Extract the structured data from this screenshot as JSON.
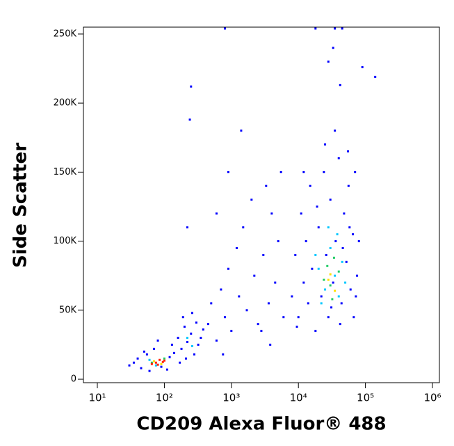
{
  "chart_data": {
    "type": "scatter",
    "x_label": "CD209 Alexa Fluor® 488",
    "y_label": "Side Scatter",
    "xscale": "log",
    "xlim": [
      6.2,
      1270000
    ],
    "xticks": [
      {
        "value": 10,
        "label": "10¹"
      },
      {
        "value": 100,
        "label": "10²"
      },
      {
        "value": 1000,
        "label": "10³"
      },
      {
        "value": 10000,
        "label": "10⁴"
      },
      {
        "value": 100000,
        "label": "10⁵"
      },
      {
        "value": 1000000,
        "label": "10⁶"
      }
    ],
    "ylim": [
      -2500,
      255000
    ],
    "yticks": [
      0,
      {
        "value": 50000,
        "label": "50K"
      },
      {
        "value": 100000,
        "label": "100K"
      },
      {
        "value": 150000,
        "label": "150K"
      },
      {
        "value": 200000,
        "label": "200K"
      },
      {
        "value": 250000,
        "label": "250K"
      }
    ],
    "grid": false,
    "series": [
      {
        "color": "#0000ff",
        "x": [
          35,
          45,
          55,
          60,
          70,
          40,
          90,
          120,
          130,
          50,
          30,
          110,
          140,
          80,
          160,
          180,
          200,
          220,
          250,
          280,
          300,
          320,
          350,
          190,
          210,
          260,
          380,
          170,
          450,
          500,
          600,
          700,
          800,
          900,
          1000,
          1200,
          1300,
          1500,
          1700,
          2000,
          2200,
          2500,
          3000,
          3300,
          3600,
          4000,
          4500,
          5000,
          5500,
          6000,
          600,
          900,
          1400,
          2800,
          3800,
          750,
          8000,
          9000,
          10000,
          11000,
          12000,
          13000,
          14000,
          15000,
          16000,
          18000,
          20000,
          22000,
          24000,
          26000,
          28000,
          30000,
          33000,
          36000,
          40000,
          44000,
          48000,
          52000,
          56000,
          60000,
          65000,
          70000,
          75000,
          80000,
          42000,
          25000,
          55000,
          19000,
          31000,
          46000,
          67000,
          12000,
          9500,
          35000,
          58000,
          72000,
          250,
          240,
          220,
          800,
          18000,
          35000,
          45000,
          33000,
          90000,
          140000,
          28000,
          42000
        ],
        "values": [
          12000,
          8000,
          18000,
          6000,
          22000,
          15000,
          9000,
          16000,
          25000,
          20000,
          10000,
          7000,
          19000,
          28000,
          30000,
          22000,
          38000,
          27000,
          33000,
          18000,
          41000,
          25000,
          30000,
          45000,
          15000,
          48000,
          36000,
          12000,
          40000,
          55000,
          28000,
          65000,
          45000,
          80000,
          35000,
          95000,
          60000,
          110000,
          50000,
          130000,
          75000,
          40000,
          90000,
          140000,
          55000,
          120000,
          70000,
          100000,
          150000,
          45000,
          120000,
          150000,
          180000,
          35000,
          25000,
          18000,
          60000,
          90000,
          45000,
          120000,
          70000,
          100000,
          55000,
          140000,
          80000,
          35000,
          110000,
          60000,
          150000,
          90000,
          45000,
          130000,
          70000,
          100000,
          160000,
          55000,
          120000,
          85000,
          140000,
          65000,
          105000,
          150000,
          75000,
          100000,
          40000,
          170000,
          165000,
          125000,
          52000,
          95000,
          45000,
          150000,
          38000,
          180000,
          110000,
          60000,
          212000,
          188000,
          110000,
          254000,
          254000,
          254000,
          254000,
          240000,
          226000,
          219000,
          230000,
          213000
        ]
      },
      {
        "color": "#00c8ff",
        "x": [
          60,
          75,
          220,
          260,
          20000,
          25000,
          30000,
          35000,
          40000,
          28000,
          45000,
          22000,
          38000,
          50000,
          18000
        ],
        "values": [
          14000,
          10000,
          30000,
          24000,
          80000,
          65000,
          95000,
          75000,
          60000,
          110000,
          85000,
          55000,
          105000,
          70000,
          90000
        ]
      },
      {
        "color": "#22cc66",
        "x": [
          65,
          100,
          24000,
          30000,
          34000,
          27000,
          40000,
          32000
        ],
        "values": [
          12000,
          15000,
          72000,
          68000,
          88000,
          82000,
          78000,
          58000
        ]
      },
      {
        "color": "#ffe000",
        "x": [
          70,
          90,
          30000,
          35000,
          28000
        ],
        "values": [
          13000,
          11000,
          76000,
          64000,
          72000
        ]
      },
      {
        "color": "#ff2000",
        "x": [
          75,
          85,
          95,
          65,
          100,
          80
        ],
        "values": [
          12000,
          14000,
          12500,
          11000,
          13500,
          10500
        ]
      }
    ]
  }
}
